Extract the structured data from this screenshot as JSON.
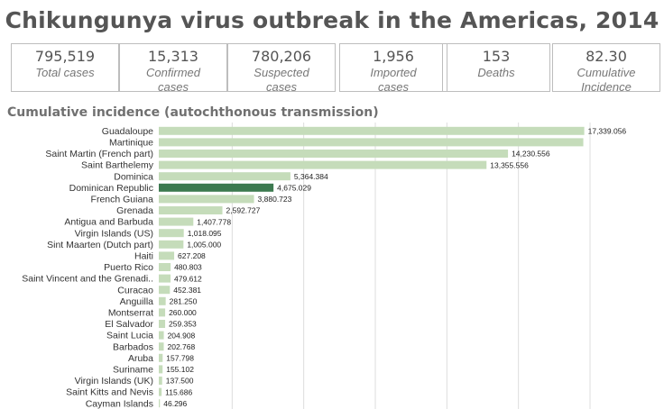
{
  "title": "Chikungunya virus outbreak in the Americas, 2014",
  "stats": [
    {
      "value": "795,519",
      "label": "Total cases",
      "bold": true
    },
    {
      "value": "15,313",
      "label": "Confirmed cases",
      "bold": false
    },
    {
      "value": "780,206",
      "label": "Suspected cases",
      "bold": true
    },
    {
      "value": "1,956",
      "label": "Imported cases",
      "bold": false
    },
    {
      "value": "153",
      "label": "Deaths",
      "bold": false
    },
    {
      "value": "82.30",
      "label": "Cumulative Incidence",
      "bold": false
    }
  ],
  "section_title": "Cumulative incidence (autochthonous transmission)",
  "chart_data": {
    "type": "bar",
    "orientation": "horizontal",
    "title": "",
    "xlabel": "",
    "ylabel": "",
    "xlim": [
      0,
      17500
    ],
    "grid": true,
    "legend": "none",
    "colors": {
      "bar": "#c5dcba",
      "highlight": "#3d7a50"
    },
    "highlight_category": "Dominican Republic",
    "categories": [
      "Guadaloupe",
      "Martinique",
      "Saint Martin (French part)",
      "Saint Barthelemy",
      "Dominica",
      "Dominican Republic",
      "French Guiana",
      "Grenada",
      "Antigua and Barbuda",
      "Virgin Islands (US)",
      "Sint Maarten (Dutch part)",
      "Haiti",
      "Puerto Rico",
      "Saint Vincent and the Grenadi..",
      "Curacao",
      "Anguilla",
      "Montserrat",
      "El Salvador",
      "Saint Lucia",
      "Barbados",
      "Aruba",
      "Suriname",
      "Virgin Islands (UK)",
      "Saint Kitts and Nevis",
      "Cayman Islands"
    ],
    "values": [
      17339.056,
      17300,
      14230.556,
      13355.556,
      5364.384,
      4675.029,
      3880.723,
      2592.727,
      1407.778,
      1018.095,
      1005.0,
      627.208,
      480.803,
      479.612,
      452.381,
      281.25,
      260.0,
      259.353,
      204.908,
      202.768,
      157.798,
      155.102,
      137.5,
      115.686,
      46.296
    ],
    "value_labels": [
      "17,339.056",
      "",
      "14,230.556",
      "13,355.556",
      "5,364.384",
      "4,675.029",
      "3,880.723",
      "2,592.727",
      "1,407.778",
      "1,018.095",
      "1,005.000",
      "627.208",
      "480.803",
      "479.612",
      "452.381",
      "281.250",
      "260.000",
      "259.353",
      "204.908",
      "202.768",
      "157.798",
      "155.102",
      "137.500",
      "115.686",
      "46.296"
    ]
  }
}
